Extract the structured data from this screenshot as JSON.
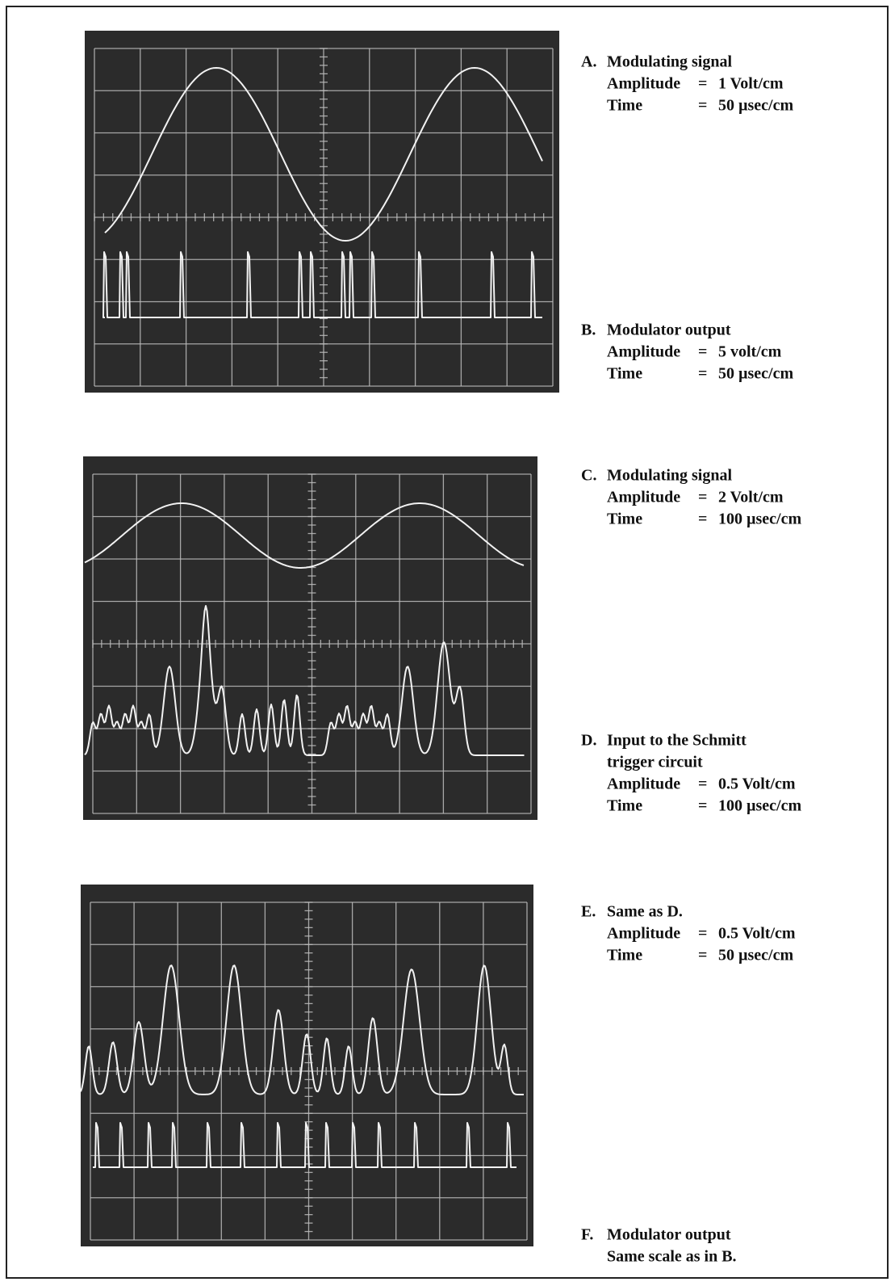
{
  "captions": [
    {
      "letter": "A.",
      "lines": [
        "Modulating signal"
      ],
      "rows": [
        [
          "Amplitude",
          "=",
          "1 Volt/cm"
        ],
        [
          "Time",
          "=",
          "50 µsec/cm"
        ]
      ]
    },
    {
      "letter": "B.",
      "lines": [
        "Modulator output"
      ],
      "rows": [
        [
          "Amplitude",
          "=",
          "5 volt/cm"
        ],
        [
          "Time",
          "=",
          "50 µsec/cm"
        ]
      ]
    },
    {
      "letter": "C.",
      "lines": [
        "Modulating signal"
      ],
      "rows": [
        [
          "Amplitude",
          "=",
          "2 Volt/cm"
        ],
        [
          "Time",
          "=",
          "100 µsec/cm"
        ]
      ]
    },
    {
      "letter": "D.",
      "lines": [
        "Input to the Schmitt",
        "trigger circuit"
      ],
      "rows": [
        [
          "Amplitude",
          "=",
          "0.5 Volt/cm"
        ],
        [
          "Time",
          "=",
          "100 µsec/cm"
        ]
      ]
    },
    {
      "letter": "E.",
      "lines": [
        "Same as D."
      ],
      "rows": [
        [
          "Amplitude",
          "=",
          "0.5 Volt/cm"
        ],
        [
          "Time",
          "=",
          "50 µsec/cm"
        ]
      ]
    },
    {
      "letter": "F.",
      "lines": [
        "Modulator output",
        "Same scale as in B."
      ],
      "rows": []
    }
  ]
}
